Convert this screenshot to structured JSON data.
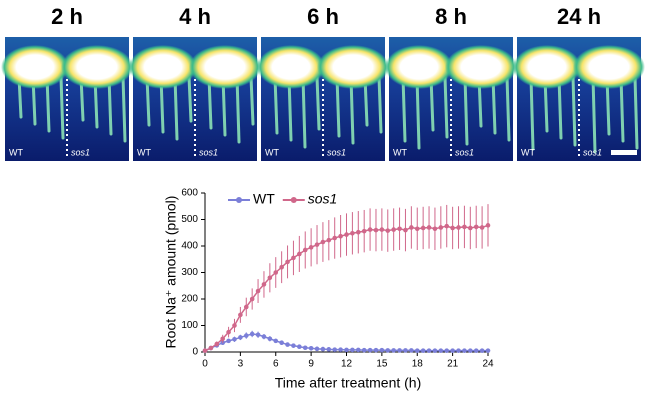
{
  "panels": [
    {
      "title": "2 h",
      "left": "WT",
      "right": "sos1"
    },
    {
      "title": "4 h",
      "left": "WT",
      "right": "sos1"
    },
    {
      "title": "6 h",
      "left": "WT",
      "right": "sos1"
    },
    {
      "title": "8 h",
      "left": "WT",
      "right": "sos1"
    },
    {
      "title": "24 h",
      "left": "WT",
      "right": "sos1"
    }
  ],
  "chart_data": {
    "type": "line",
    "x_label": "Time after treatment (h)",
    "y_label": "Root Na⁺ amount (pmol)",
    "x": [
      0,
      0.5,
      1,
      1.5,
      2,
      2.5,
      3,
      3.5,
      4,
      4.5,
      5,
      5.5,
      6,
      6.5,
      7,
      7.5,
      8,
      8.5,
      9,
      9.5,
      10,
      10.5,
      11,
      11.5,
      12,
      12.5,
      13,
      13.5,
      14,
      14.5,
      15,
      15.5,
      16,
      16.5,
      17,
      17.5,
      18,
      18.5,
      19,
      19.5,
      20,
      20.5,
      21,
      21.5,
      22,
      22.5,
      23,
      23.5,
      24
    ],
    "series": [
      {
        "name": "WT",
        "color": "#7b7fd8",
        "values": [
          5,
          15,
          25,
          35,
          42,
          48,
          55,
          62,
          68,
          65,
          58,
          50,
          42,
          35,
          28,
          24,
          20,
          16,
          14,
          12,
          11,
          10,
          9,
          9,
          8,
          8,
          8,
          7,
          7,
          7,
          7,
          6,
          6,
          6,
          6,
          6,
          5,
          5,
          5,
          5,
          5,
          5,
          5,
          5,
          5,
          5,
          5,
          5,
          5
        ],
        "errors": [
          2,
          4,
          6,
          8,
          8,
          10,
          10,
          12,
          12,
          12,
          10,
          10,
          8,
          8,
          6,
          6,
          5,
          5,
          4,
          4,
          4,
          4,
          3,
          3,
          3,
          3,
          3,
          3,
          3,
          3,
          3,
          3,
          3,
          3,
          3,
          3,
          3,
          3,
          3,
          3,
          3,
          3,
          3,
          3,
          3,
          3,
          3,
          3,
          3
        ]
      },
      {
        "name": "sos1",
        "color": "#d0678a",
        "values": [
          5,
          15,
          30,
          50,
          75,
          100,
          140,
          170,
          200,
          230,
          255,
          280,
          300,
          320,
          340,
          355,
          370,
          385,
          395,
          405,
          415,
          422,
          430,
          437,
          443,
          448,
          452,
          456,
          462,
          460,
          462,
          458,
          462,
          465,
          460,
          470,
          465,
          468,
          470,
          465,
          470,
          475,
          468,
          470,
          472,
          468,
          472,
          470,
          478
        ],
        "errors": [
          2,
          5,
          10,
          15,
          20,
          25,
          30,
          35,
          40,
          45,
          50,
          55,
          58,
          60,
          62,
          65,
          68,
          70,
          72,
          74,
          75,
          76,
          78,
          80,
          80,
          80,
          80,
          80,
          80,
          80,
          80,
          80,
          80,
          80,
          80,
          80,
          80,
          80,
          80,
          80,
          80,
          80,
          80,
          80,
          80,
          80,
          80,
          80,
          80
        ]
      }
    ],
    "xlim": [
      0,
      24
    ],
    "xticks": [
      0,
      3,
      6,
      9,
      12,
      15,
      18,
      21,
      24
    ],
    "ylim": [
      0,
      600
    ],
    "yticks": [
      0,
      100,
      200,
      300,
      400,
      500,
      600
    ],
    "legend": "top"
  }
}
